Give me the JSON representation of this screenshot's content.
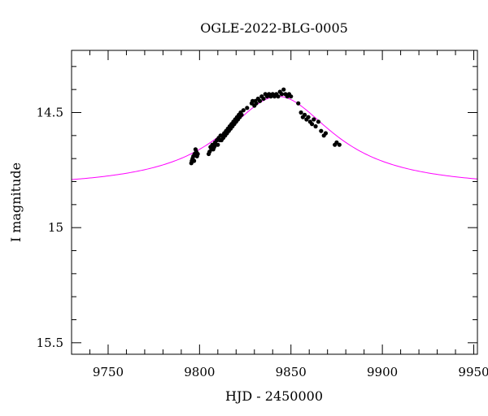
{
  "chart_data": {
    "type": "scatter",
    "title": "OGLE-2022-BLG-0005",
    "xlabel": "HJD - 2450000",
    "ylabel": "I magnitude",
    "xlim": [
      9730,
      9952
    ],
    "ylim": [
      15.55,
      14.23
    ],
    "y_inverted": true,
    "grid": false,
    "xticks": [
      {
        "value": 9750,
        "label": "9750"
      },
      {
        "value": 9800,
        "label": "9800"
      },
      {
        "value": 9850,
        "label": "9850"
      },
      {
        "value": 9900,
        "label": "9900"
      },
      {
        "value": 9950,
        "label": "9950"
      }
    ],
    "yticks": [
      {
        "value": 14.5,
        "label": "14.5"
      },
      {
        "value": 15.0,
        "label": "15"
      },
      {
        "value": 15.5,
        "label": "15.5"
      }
    ],
    "x_minor_step": 10,
    "y_minor_step": 0.1,
    "series": [
      {
        "kind": "points",
        "color": "#000000",
        "points": [
          [
            9795.5,
            14.72
          ],
          [
            9795.8,
            14.71
          ],
          [
            9796.2,
            14.7
          ],
          [
            9796.6,
            14.69
          ],
          [
            9797.0,
            14.71
          ],
          [
            9797.3,
            14.68
          ],
          [
            9797.8,
            14.66
          ],
          [
            9798.2,
            14.67
          ],
          [
            9798.6,
            14.69
          ],
          [
            9799.0,
            14.68
          ],
          [
            9805.0,
            14.68
          ],
          [
            9805.5,
            14.67
          ],
          [
            9806.0,
            14.65
          ],
          [
            9806.5,
            14.66
          ],
          [
            9807.0,
            14.64
          ],
          [
            9807.5,
            14.66
          ],
          [
            9808.0,
            14.65
          ],
          [
            9808.5,
            14.63
          ],
          [
            9809.0,
            14.64
          ],
          [
            9809.5,
            14.62
          ],
          [
            9810.0,
            14.64
          ],
          [
            9810.5,
            14.61
          ],
          [
            9811.0,
            14.62
          ],
          [
            9811.5,
            14.6
          ],
          [
            9812.0,
            14.62
          ],
          [
            9812.5,
            14.6
          ],
          [
            9813.0,
            14.61
          ],
          [
            9813.5,
            14.59
          ],
          [
            9814.0,
            14.6
          ],
          [
            9814.5,
            14.58
          ],
          [
            9815.0,
            14.59
          ],
          [
            9815.5,
            14.57
          ],
          [
            9816.0,
            14.58
          ],
          [
            9816.5,
            14.56
          ],
          [
            9817.0,
            14.57
          ],
          [
            9817.5,
            14.55
          ],
          [
            9818.0,
            14.56
          ],
          [
            9818.5,
            14.54
          ],
          [
            9819.0,
            14.55
          ],
          [
            9819.5,
            14.53
          ],
          [
            9820.0,
            14.54
          ],
          [
            9820.5,
            14.52
          ],
          [
            9821.0,
            14.53
          ],
          [
            9821.5,
            14.51
          ],
          [
            9822.0,
            14.52
          ],
          [
            9822.5,
            14.5
          ],
          [
            9823.0,
            14.51
          ],
          [
            9824.0,
            14.49
          ],
          [
            9826.0,
            14.48
          ],
          [
            9828.5,
            14.46
          ],
          [
            9829.0,
            14.45
          ],
          [
            9830.0,
            14.47
          ],
          [
            9830.5,
            14.45
          ],
          [
            9831.0,
            14.46
          ],
          [
            9832.0,
            14.44
          ],
          [
            9833.0,
            14.45
          ],
          [
            9834.0,
            14.43
          ],
          [
            9835.0,
            14.44
          ],
          [
            9836.0,
            14.42
          ],
          [
            9837.0,
            14.43
          ],
          [
            9838.0,
            14.42
          ],
          [
            9839.0,
            14.43
          ],
          [
            9840.0,
            14.42
          ],
          [
            9841.0,
            14.43
          ],
          [
            9842.0,
            14.42
          ],
          [
            9843.0,
            14.43
          ],
          [
            9844.0,
            14.41
          ],
          [
            9845.0,
            14.42
          ],
          [
            9846.0,
            14.4
          ],
          [
            9847.0,
            14.42
          ],
          [
            9848.0,
            14.43
          ],
          [
            9849.0,
            14.42
          ],
          [
            9850.0,
            14.43
          ],
          [
            9854.0,
            14.46
          ],
          [
            9855.5,
            14.5
          ],
          [
            9856.5,
            14.52
          ],
          [
            9857.5,
            14.51
          ],
          [
            9858.5,
            14.53
          ],
          [
            9859.5,
            14.52
          ],
          [
            9860.5,
            14.54
          ],
          [
            9861.5,
            14.55
          ],
          [
            9862.5,
            14.53
          ],
          [
            9863.5,
            14.56
          ],
          [
            9865.0,
            14.54
          ],
          [
            9866.5,
            14.58
          ],
          [
            9868.0,
            14.6
          ],
          [
            9869.0,
            14.59
          ],
          [
            9874.0,
            14.64
          ],
          [
            9875.0,
            14.63
          ],
          [
            9876.5,
            14.64
          ]
        ]
      },
      {
        "kind": "model-curve",
        "color": "#ff00ff",
        "t0": 9843,
        "peak_mag": 14.43,
        "base_mag": 14.83,
        "width_days": 37
      }
    ]
  }
}
